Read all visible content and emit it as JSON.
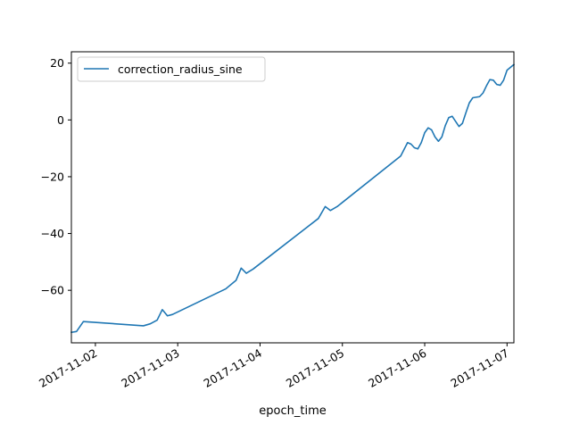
{
  "chart_data": {
    "type": "line",
    "xlabel": "epoch_time",
    "ylabel": "",
    "x_axis": {
      "kind": "date",
      "range": [
        "2017-11-01T17:00:00",
        "2017-11-07T02:00:00"
      ],
      "ticks": [
        {
          "value": "2017-11-02T00:00:00",
          "label": "2017-11-02"
        },
        {
          "value": "2017-11-03T00:00:00",
          "label": "2017-11-03"
        },
        {
          "value": "2017-11-04T00:00:00",
          "label": "2017-11-04"
        },
        {
          "value": "2017-11-05T00:00:00",
          "label": "2017-11-05"
        },
        {
          "value": "2017-11-06T00:00:00",
          "label": "2017-11-06"
        },
        {
          "value": "2017-11-07T00:00:00",
          "label": "2017-11-07"
        }
      ]
    },
    "y_axis": {
      "range": [
        -78.5,
        24
      ],
      "ticks": [
        {
          "value": -60,
          "label": "−60"
        },
        {
          "value": -40,
          "label": "−40"
        },
        {
          "value": -20,
          "label": "−20"
        },
        {
          "value": 0,
          "label": "0"
        },
        {
          "value": 20,
          "label": "20"
        }
      ]
    },
    "grid": false,
    "legend": {
      "placement": "top-left"
    },
    "series": [
      {
        "name": "correction_radius_sine",
        "color": "#1f77b4",
        "points": [
          [
            "2017-11-01T17:00:00",
            -74.8
          ],
          [
            "2017-11-01T18:30:00",
            -74.5
          ],
          [
            "2017-11-01T20:30:00",
            -71.0
          ],
          [
            "2017-11-02T14:00:00",
            -72.5
          ],
          [
            "2017-11-02T16:00:00",
            -71.8
          ],
          [
            "2017-11-02T18:00:00",
            -70.5
          ],
          [
            "2017-11-02T19:30:00",
            -66.8
          ],
          [
            "2017-11-02T21:00:00",
            -69.0
          ],
          [
            "2017-11-02T22:30:00",
            -68.5
          ],
          [
            "2017-11-03T14:00:00",
            -59.5
          ],
          [
            "2017-11-03T17:00:00",
            -56.5
          ],
          [
            "2017-11-03T18:30:00",
            -52.2
          ],
          [
            "2017-11-03T20:00:00",
            -54.0
          ],
          [
            "2017-11-03T22:00:00",
            -52.5
          ],
          [
            "2017-11-04T17:00:00",
            -34.7
          ],
          [
            "2017-11-04T19:00:00",
            -30.5
          ],
          [
            "2017-11-04T20:30:00",
            -31.9
          ],
          [
            "2017-11-04T22:30:00",
            -30.5
          ],
          [
            "2017-11-05T17:00:00",
            -12.7
          ],
          [
            "2017-11-05T19:00:00",
            -8.0
          ],
          [
            "2017-11-05T20:00:00",
            -8.5
          ],
          [
            "2017-11-05T21:00:00",
            -9.8
          ],
          [
            "2017-11-05T22:00:00",
            -10.2
          ],
          [
            "2017-11-05T23:00:00",
            -8.0
          ],
          [
            "2017-11-06T00:00:00",
            -4.5
          ],
          [
            "2017-11-06T01:00:00",
            -2.8
          ],
          [
            "2017-11-06T02:00:00",
            -3.5
          ],
          [
            "2017-11-06T03:00:00",
            -6.0
          ],
          [
            "2017-11-06T04:00:00",
            -7.5
          ],
          [
            "2017-11-06T05:00:00",
            -6.0
          ],
          [
            "2017-11-06T06:00:00",
            -2.0
          ],
          [
            "2017-11-06T07:00:00",
            0.8
          ],
          [
            "2017-11-06T08:00:00",
            1.3
          ],
          [
            "2017-11-06T09:00:00",
            -0.5
          ],
          [
            "2017-11-06T10:00:00",
            -2.3
          ],
          [
            "2017-11-06T11:00:00",
            -1.2
          ],
          [
            "2017-11-06T12:00:00",
            2.5
          ],
          [
            "2017-11-06T13:00:00",
            6.0
          ],
          [
            "2017-11-06T14:00:00",
            7.8
          ],
          [
            "2017-11-06T15:00:00",
            8.0
          ],
          [
            "2017-11-06T16:00:00",
            8.2
          ],
          [
            "2017-11-06T17:00:00",
            9.5
          ],
          [
            "2017-11-06T18:00:00",
            12.0
          ],
          [
            "2017-11-06T19:00:00",
            14.2
          ],
          [
            "2017-11-06T20:00:00",
            14.0
          ],
          [
            "2017-11-06T21:00:00",
            12.5
          ],
          [
            "2017-11-06T22:00:00",
            12.2
          ],
          [
            "2017-11-06T23:00:00",
            14.0
          ],
          [
            "2017-11-07T00:00:00",
            17.5
          ],
          [
            "2017-11-07T02:00:00",
            19.5
          ]
        ]
      }
    ]
  }
}
